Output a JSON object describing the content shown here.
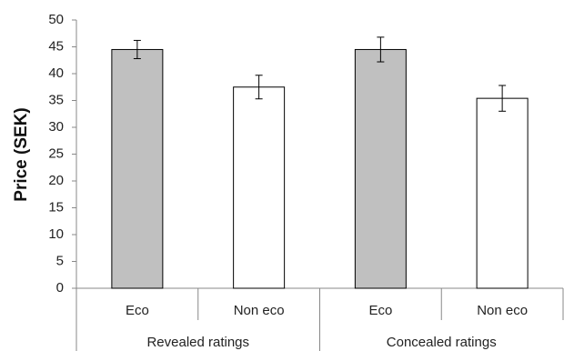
{
  "chart_data": {
    "type": "bar",
    "ylabel": "Price (SEK)",
    "ylim": [
      0,
      50
    ],
    "yticks": [
      0,
      5,
      10,
      15,
      20,
      25,
      30,
      35,
      40,
      45,
      50
    ],
    "grid": false,
    "legend": "none",
    "groups": [
      "Revealed ratings",
      "Concealed ratings"
    ],
    "categories": [
      "Eco",
      "Non eco",
      "Eco",
      "Non eco"
    ],
    "values": [
      44.5,
      37.5,
      44.5,
      35.4
    ],
    "error": [
      1.7,
      2.2,
      2.3,
      2.4
    ],
    "bar_fill": [
      "#c0c0c0",
      "#ffffff",
      "#c0c0c0",
      "#ffffff"
    ],
    "bar_stroke": "#000000"
  }
}
